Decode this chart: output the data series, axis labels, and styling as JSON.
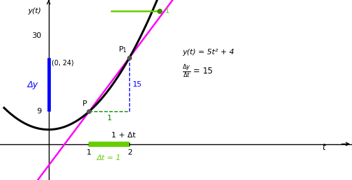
{
  "bg_color": "#ffffff",
  "curve_color": "#000000",
  "secant_color": "#ff00ff",
  "dv_line_color": "#0000ff",
  "dh_line_color": "#008800",
  "delta_y_color": "#0000ff",
  "green_bar_color": "#66cc00",
  "point_color": "#555555",
  "legend_dot_color": "#448800",
  "xlim": [
    -1.2,
    7.5
  ],
  "ylim": [
    -10,
    40
  ],
  "x_axis_label": "t",
  "y_axis_label": "y(t)",
  "P_t": 1.0,
  "P1_t": 2.0,
  "y_func_a": 5,
  "y_func_b": 4,
  "formula_label": "y(t) = 5t² + 4",
  "delta_y_label": "Δy",
  "delta_t_label": "Δt = 1",
  "one_plus_delta_t_label": "1 + Δt",
  "label_9": "9",
  "label_15": "15",
  "label_1_dashed": "1",
  "label_0_24": "(0, 24)",
  "label_30": "30",
  "legend_label": "1"
}
